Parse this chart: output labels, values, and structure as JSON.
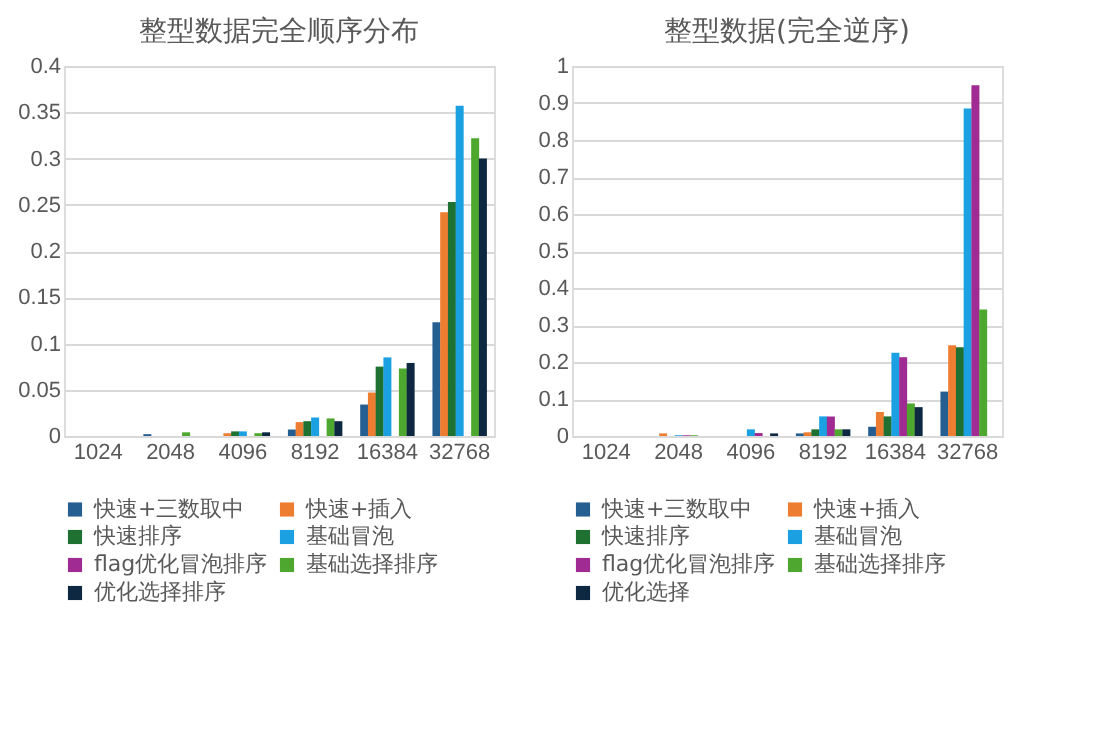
{
  "chart_data": [
    {
      "type": "bar",
      "title": "整型数据完全顺序分布",
      "categories": [
        "1024",
        "2048",
        "4096",
        "8192",
        "16384",
        "32768"
      ],
      "ylim": [
        0,
        0.4
      ],
      "yticks": [
        0,
        0.05,
        0.1,
        0.15,
        0.2,
        0.25,
        0.3,
        0.35,
        0.4
      ],
      "grid": "y",
      "legend": "bottom",
      "series": [
        {
          "name": "快速+三数取中",
          "color": "#255e91",
          "values": [
            0,
            0.002,
            0,
            0.007,
            0.034,
            0.123
          ]
        },
        {
          "name": "快速+插入",
          "color": "#ed7d31",
          "values": [
            0,
            0,
            0.003,
            0.015,
            0.047,
            0.242
          ]
        },
        {
          "name": "快速排序",
          "color": "#1e7130",
          "values": [
            0,
            0,
            0.005,
            0.016,
            0.075,
            0.253
          ]
        },
        {
          "name": "基础冒泡",
          "color": "#1ba1e2",
          "values": [
            0,
            0,
            0.005,
            0.02,
            0.085,
            0.357
          ]
        },
        {
          "name": "flag优化冒泡排序",
          "color": "#a02b93",
          "values": [
            null,
            null,
            null,
            null,
            null,
            null
          ]
        },
        {
          "name": "基础选择排序",
          "color": "#4ea72e",
          "values": [
            0,
            0.004,
            0.003,
            0.019,
            0.073,
            0.322
          ]
        },
        {
          "name": "优化选择排序",
          "color": "#0e2841",
          "values": [
            0,
            0,
            0.004,
            0.016,
            0.079,
            0.3
          ]
        }
      ]
    },
    {
      "type": "bar",
      "title": "整型数据(完全逆序)",
      "categories": [
        "1024",
        "2048",
        "4096",
        "8192",
        "16384",
        "32768"
      ],
      "ylim": [
        0,
        1
      ],
      "yticks": [
        0,
        0.1,
        0.2,
        0.3,
        0.4,
        0.5,
        0.6,
        0.7,
        0.8,
        0.9,
        1
      ],
      "grid": "y",
      "legend": "bottom",
      "series": [
        {
          "name": "快速+三数取中",
          "color": "#255e91",
          "values": [
            0,
            0,
            0,
            0.007,
            0.025,
            0.12
          ]
        },
        {
          "name": "快速+插入",
          "color": "#ed7d31",
          "values": [
            0,
            0.007,
            0,
            0.01,
            0.065,
            0.245
          ]
        },
        {
          "name": "快速排序",
          "color": "#1e7130",
          "values": [
            0,
            0,
            0,
            0.018,
            0.053,
            0.24
          ]
        },
        {
          "name": "基础冒泡",
          "color": "#1ba1e2",
          "values": [
            0,
            0.002,
            0.018,
            0.053,
            0.225,
            0.885
          ]
        },
        {
          "name": "flag优化冒泡排序",
          "color": "#a02b93",
          "values": [
            0,
            0.002,
            0.008,
            0.053,
            0.213,
            0.948
          ]
        },
        {
          "name": "基础选择排序",
          "color": "#4ea72e",
          "values": [
            0,
            0.002,
            0,
            0.018,
            0.088,
            0.342
          ]
        },
        {
          "name": "优化选择",
          "color": "#0e2841",
          "values": [
            0,
            0,
            0.007,
            0.018,
            0.078,
            null
          ]
        }
      ]
    }
  ]
}
